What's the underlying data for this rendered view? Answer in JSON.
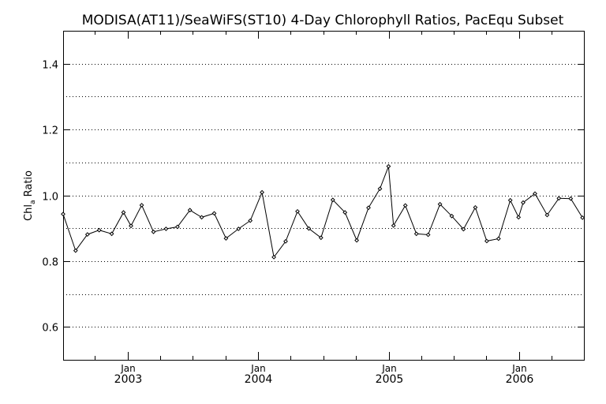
{
  "chart_data": {
    "type": "line",
    "title": "MODISA(AT11)/SeaWiFS(ST10) 4-Day Chlorophyll Ratios, PacEqu Subset",
    "ylabel_main": "Chl",
    "ylabel_sub": "a",
    "ylabel_rest": " Ratio",
    "ylim": [
      0.5,
      1.5
    ],
    "yticks": [
      0.6,
      0.8,
      1.0,
      1.2,
      1.4
    ],
    "ytick_labels": [
      "0.6",
      "0.8",
      "1.0",
      "1.2",
      "1.4"
    ],
    "grid_y": [
      0.6,
      0.7,
      0.8,
      0.9,
      1.0,
      1.1,
      1.2,
      1.3,
      1.4
    ],
    "grid": "horizontal-dotted",
    "xlim": [
      "2002-07-04",
      "2006-07-01"
    ],
    "xticks": [
      {
        "date": "2003-01-01",
        "month": "Jan",
        "year": "2003"
      },
      {
        "date": "2004-01-01",
        "month": "Jan",
        "year": "2004"
      },
      {
        "date": "2005-01-01",
        "month": "Jan",
        "year": "2005"
      },
      {
        "date": "2006-01-01",
        "month": "Jan",
        "year": "2006"
      }
    ],
    "series": [
      {
        "x": [
          "2002-07-04",
          "2002-08-08",
          "2002-09-10",
          "2002-10-13",
          "2002-11-17",
          "2002-12-20",
          "2003-01-10",
          "2003-02-09",
          "2003-03-14",
          "2003-04-18",
          "2003-05-20",
          "2003-06-24",
          "2003-07-27",
          "2003-08-31",
          "2003-10-03",
          "2003-11-07",
          "2003-12-10",
          "2004-01-12",
          "2004-02-14",
          "2004-03-18",
          "2004-04-20",
          "2004-05-22",
          "2004-06-25",
          "2004-07-28",
          "2004-08-31",
          "2004-10-03",
          "2004-11-05",
          "2004-12-07",
          "2004-12-31",
          "2005-01-14",
          "2005-02-16",
          "2005-03-19",
          "2005-04-21",
          "2005-05-24",
          "2005-06-26",
          "2005-07-29",
          "2005-08-31",
          "2005-10-02",
          "2005-11-04",
          "2005-12-07",
          "2005-12-30",
          "2006-01-12",
          "2006-02-14",
          "2006-03-20",
          "2006-04-22",
          "2006-05-25",
          "2006-06-27"
        ],
        "y": [
          0.943,
          0.832,
          0.881,
          0.894,
          0.883,
          0.948,
          0.907,
          0.97,
          0.889,
          0.898,
          0.904,
          0.955,
          0.933,
          0.945,
          0.869,
          0.898,
          0.923,
          1.009,
          0.812,
          0.86,
          0.951,
          0.899,
          0.871,
          0.986,
          0.948,
          0.863,
          0.962,
          1.02,
          1.088,
          0.908,
          0.969,
          0.883,
          0.88,
          0.973,
          0.937,
          0.897,
          0.963,
          0.861,
          0.868,
          0.985,
          0.933,
          0.978,
          1.005,
          0.94,
          0.991,
          0.99,
          0.932
        ]
      }
    ]
  }
}
